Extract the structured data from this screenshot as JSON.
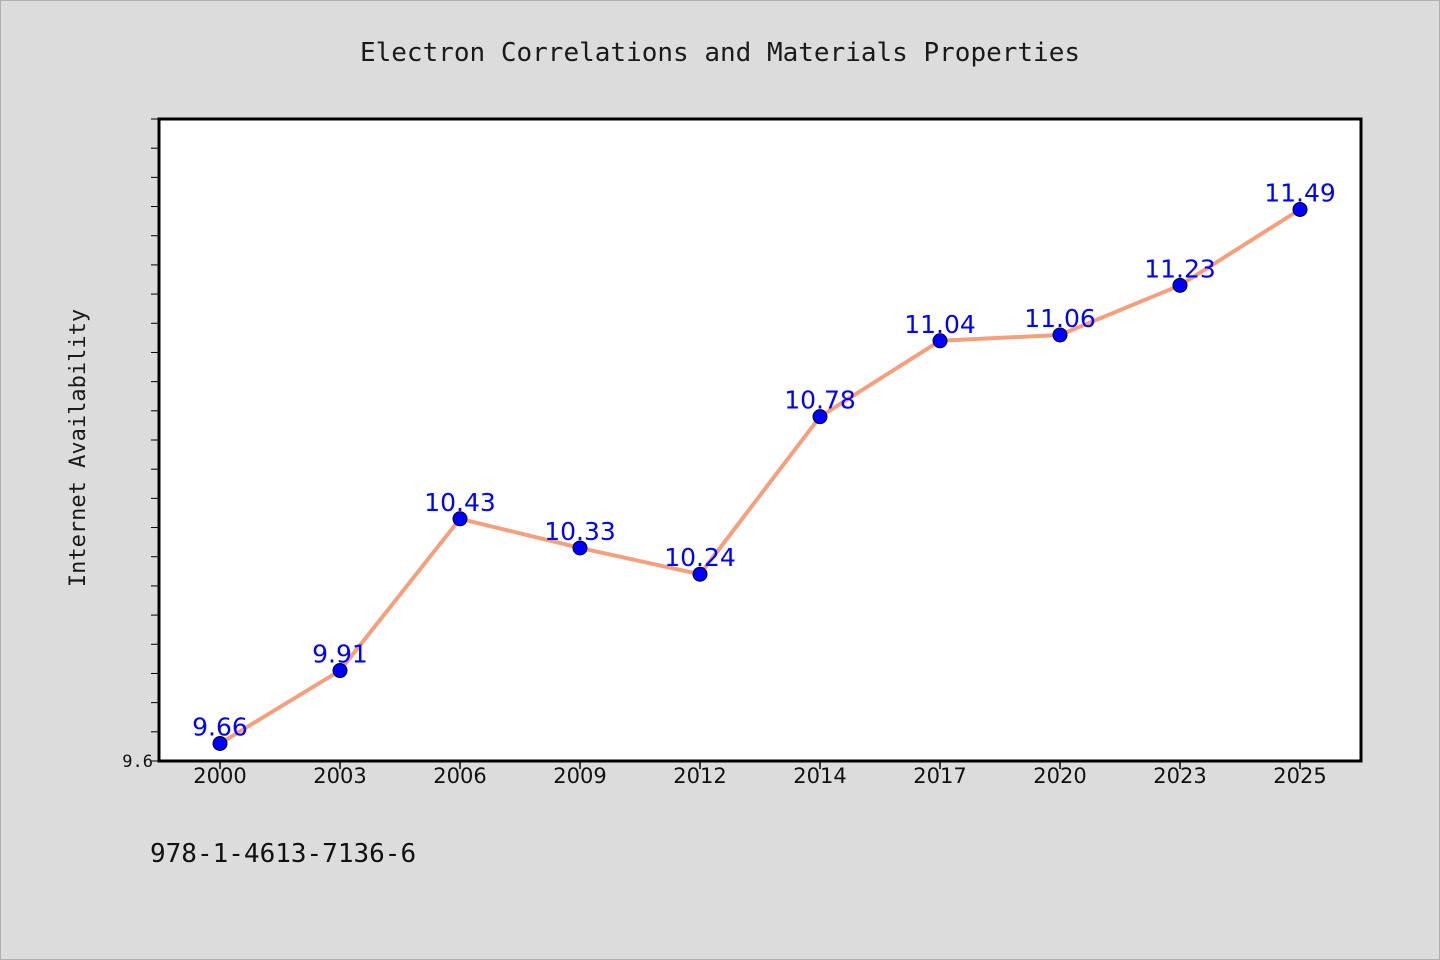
{
  "chart_data": {
    "type": "line",
    "title": "Electron Correlations and Materials Properties",
    "xlabel": "",
    "ylabel": "Internet Availability",
    "categories": [
      "2000",
      "2003",
      "2006",
      "2009",
      "2012",
      "2014",
      "2017",
      "2020",
      "2023",
      "2025"
    ],
    "series": [
      {
        "values": [
          9.66,
          9.91,
          10.43,
          10.33,
          10.24,
          10.78,
          11.04,
          11.06,
          11.23,
          11.49
        ]
      }
    ],
    "data_labels": [
      "9.66",
      "9.91",
      "10.43",
      "10.33",
      "10.24",
      "10.78",
      "11.04",
      "11.06",
      "11.23",
      "11.49"
    ],
    "ylim": [
      9.6,
      11.8
    ],
    "y_tick_labels": [
      "9.6"
    ],
    "grid": false,
    "legend": "none",
    "colors": {
      "line": "#f4a07e",
      "marker": "#0000ff",
      "label": "#0000ff",
      "plot_bg": "#ffffff",
      "page_bg": "#dcdcdc"
    }
  },
  "footer": {
    "identifier": "978-1-4613-7136-6"
  }
}
